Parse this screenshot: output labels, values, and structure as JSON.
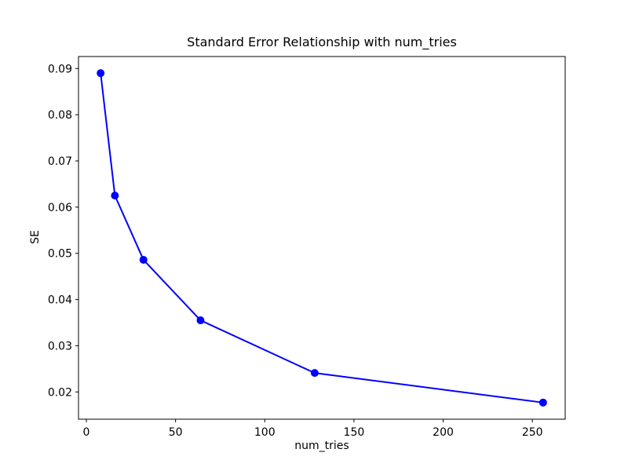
{
  "figure": {
    "title": "Standard Error Relationship with num_tries",
    "xlabel": "num_tries",
    "ylabel": "SE"
  },
  "chart_data": {
    "type": "line",
    "title": "Standard Error Relationship with num_tries",
    "xlabel": "num_tries",
    "ylabel": "SE",
    "x": [
      8,
      16,
      32,
      64,
      128,
      256
    ],
    "y": [
      0.089,
      0.0625,
      0.0486,
      0.0355,
      0.0241,
      0.0177
    ],
    "series": [
      {
        "name": "SE",
        "x": [
          8,
          16,
          32,
          64,
          128,
          256
        ],
        "y": [
          0.089,
          0.0625,
          0.0486,
          0.0355,
          0.0241,
          0.0177
        ]
      }
    ],
    "xticks": [
      0,
      50,
      100,
      150,
      200,
      250
    ],
    "yticks": [
      0.02,
      0.03,
      0.04,
      0.05,
      0.06,
      0.07,
      0.08,
      0.09
    ],
    "xlim": [
      -4.4,
      268.4
    ],
    "ylim": [
      0.0141,
      0.0926
    ],
    "grid": false,
    "legend": null,
    "line_color": "#0000ff",
    "marker": "circle",
    "background_color": "#ffffff",
    "spine_color": "#000000"
  }
}
